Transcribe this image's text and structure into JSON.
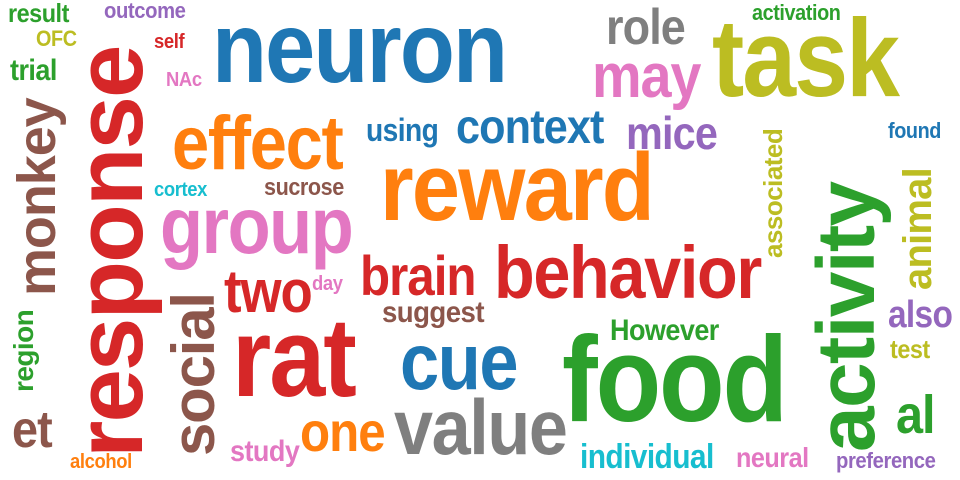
{
  "colors": {
    "blue": "#1f77b4",
    "orange": "#ff7f0e",
    "red": "#d62728",
    "green": "#2ca02c",
    "olive": "#bcbd22",
    "pink": "#e377c2",
    "purple": "#9467bd",
    "brown": "#8c564b",
    "gray": "#7f7f7f",
    "cyan": "#17becf"
  },
  "words": {
    "neuron": "neuron",
    "task": "task",
    "reward": "reward",
    "response": "response",
    "food": "food",
    "activity": "activity",
    "rat": "rat",
    "behavior": "behavior",
    "effect": "effect",
    "group": "group",
    "cue": "cue",
    "value": "value",
    "context": "context",
    "may": "may",
    "social": "social",
    "brain": "brain",
    "two": "two",
    "monkey": "monkey",
    "one": "one",
    "role": "role",
    "mice": "mice",
    "animal": "animal",
    "al": "al",
    "et": "et",
    "using": "using",
    "also": "also",
    "suggest": "suggest",
    "individual": "individual",
    "study": "study",
    "However": "However",
    "associated": "associated",
    "region": "region",
    "result": "result",
    "trial": "trial",
    "sucrose": "sucrose",
    "neural": "neural",
    "activation": "activation",
    "outcome": "outcome",
    "found": "found",
    "test": "test",
    "OFC": "OFC",
    "preference": "preference",
    "cortex": "cortex",
    "alcohol": "alcohol",
    "self": "self",
    "NAc": "NAc",
    "day": "day"
  }
}
